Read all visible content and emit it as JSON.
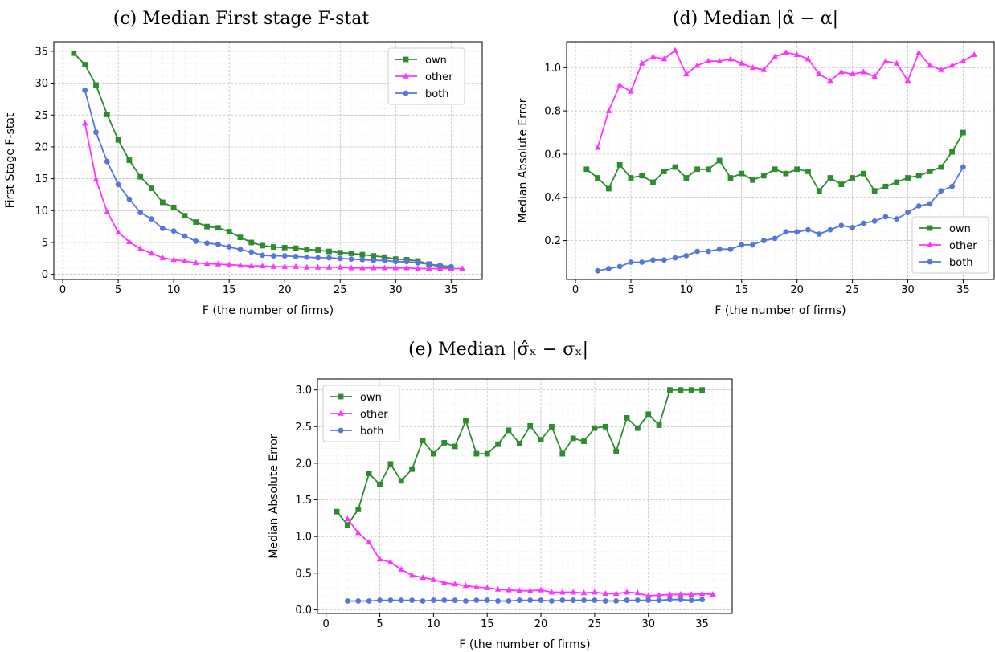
{
  "figure": {
    "panels": [
      {
        "title": "(c) Median First stage F-stat"
      },
      {
        "title": "(d) Median |α̂ − α|"
      },
      {
        "title": "(e) Median |σ̂ₓ − σₓ|"
      }
    ]
  },
  "chart_data": [
    {
      "type": "line",
      "title": "(c) Median First stage F-stat",
      "xlabel": "F (the number of firms)",
      "ylabel": "First Stage F-stat",
      "xlim": [
        -0.8,
        37.8
      ],
      "ylim": [
        -0.8,
        36.5
      ],
      "xticks": [
        0,
        5,
        10,
        15,
        20,
        25,
        30,
        35
      ],
      "yticks": [
        0,
        5,
        10,
        15,
        20,
        25,
        30,
        35
      ],
      "grid": true,
      "legend": "top-right",
      "series": [
        {
          "name": "own",
          "color": "#2e8b2e",
          "marker": "square",
          "x": [
            1,
            2,
            3,
            4,
            5,
            6,
            7,
            8,
            9,
            10,
            11,
            12,
            13,
            14,
            15,
            16,
            17,
            18,
            19,
            20,
            21,
            22,
            23,
            24,
            25,
            26,
            27,
            28,
            29,
            30,
            31,
            32,
            33,
            34,
            35
          ],
          "y": [
            34.7,
            32.9,
            29.7,
            25.1,
            21.1,
            17.9,
            15.3,
            13.5,
            11.3,
            10.5,
            9.2,
            8.2,
            7.5,
            7.3,
            6.7,
            5.8,
            5.0,
            4.5,
            4.3,
            4.2,
            4.1,
            3.9,
            3.8,
            3.6,
            3.4,
            3.3,
            3.1,
            2.9,
            2.7,
            2.4,
            2.3,
            2.1,
            1.6,
            1.2,
            1.0
          ]
        },
        {
          "name": "other",
          "color": "#ff33ff",
          "marker": "triangle",
          "x": [
            2,
            3,
            4,
            5,
            6,
            7,
            8,
            9,
            10,
            11,
            12,
            13,
            14,
            15,
            16,
            17,
            18,
            19,
            20,
            21,
            22,
            23,
            24,
            25,
            26,
            27,
            28,
            29,
            30,
            31,
            32,
            33,
            34,
            35,
            36
          ],
          "y": [
            23.7,
            14.9,
            9.8,
            6.6,
            5.1,
            4.0,
            3.3,
            2.6,
            2.3,
            2.1,
            1.8,
            1.7,
            1.6,
            1.5,
            1.4,
            1.3,
            1.3,
            1.2,
            1.2,
            1.2,
            1.1,
            1.1,
            1.1,
            1.1,
            1.0,
            1.0,
            1.0,
            1.0,
            1.0,
            1.0,
            0.9,
            0.9,
            0.9,
            0.9,
            0.9
          ]
        },
        {
          "name": "both",
          "color": "#5577dd",
          "marker": "circle",
          "x": [
            2,
            3,
            4,
            5,
            6,
            7,
            8,
            9,
            10,
            11,
            12,
            13,
            14,
            15,
            16,
            17,
            18,
            19,
            20,
            21,
            22,
            23,
            24,
            25,
            26,
            27,
            28,
            29,
            30,
            31,
            32,
            33,
            34,
            35
          ],
          "y": [
            28.9,
            22.3,
            17.7,
            14.1,
            11.8,
            9.7,
            8.7,
            7.2,
            6.8,
            6.0,
            5.2,
            4.9,
            4.7,
            4.3,
            3.9,
            3.5,
            3.0,
            2.9,
            2.9,
            2.8,
            2.7,
            2.6,
            2.6,
            2.5,
            2.4,
            2.3,
            2.2,
            2.2,
            2.0,
            2.0,
            1.8,
            1.6,
            1.4,
            1.2
          ]
        }
      ]
    },
    {
      "type": "line",
      "title": "(d) Median |α̂ − α|",
      "xlabel": "F (the number of firms)",
      "ylabel": "Median Absolute Error",
      "xlim": [
        -0.8,
        37.8
      ],
      "ylim": [
        0.02,
        1.12
      ],
      "xticks": [
        0,
        5,
        10,
        15,
        20,
        25,
        30,
        35
      ],
      "yticks": [
        0.2,
        0.4,
        0.6,
        0.8,
        1.0
      ],
      "grid": true,
      "legend": "bottom-right",
      "series": [
        {
          "name": "own",
          "color": "#2e8b2e",
          "marker": "square",
          "x": [
            1,
            2,
            3,
            4,
            5,
            6,
            7,
            8,
            9,
            10,
            11,
            12,
            13,
            14,
            15,
            16,
            17,
            18,
            19,
            20,
            21,
            22,
            23,
            24,
            25,
            26,
            27,
            28,
            29,
            30,
            31,
            32,
            33,
            34,
            35
          ],
          "y": [
            0.53,
            0.49,
            0.44,
            0.55,
            0.49,
            0.5,
            0.47,
            0.52,
            0.54,
            0.49,
            0.53,
            0.53,
            0.57,
            0.49,
            0.51,
            0.48,
            0.5,
            0.53,
            0.51,
            0.53,
            0.52,
            0.43,
            0.49,
            0.46,
            0.49,
            0.51,
            0.43,
            0.45,
            0.47,
            0.49,
            0.5,
            0.52,
            0.54,
            0.61,
            0.7
          ]
        },
        {
          "name": "other",
          "color": "#ff33ff",
          "marker": "triangle",
          "x": [
            2,
            3,
            4,
            5,
            6,
            7,
            8,
            9,
            10,
            11,
            12,
            13,
            14,
            15,
            16,
            17,
            18,
            19,
            20,
            21,
            22,
            23,
            24,
            25,
            26,
            27,
            28,
            29,
            30,
            31,
            32,
            33,
            34,
            35,
            36
          ],
          "y": [
            0.63,
            0.8,
            0.92,
            0.89,
            1.02,
            1.05,
            1.04,
            1.08,
            0.97,
            1.01,
            1.03,
            1.03,
            1.04,
            1.02,
            1.0,
            0.99,
            1.05,
            1.07,
            1.06,
            1.04,
            0.97,
            0.94,
            0.98,
            0.97,
            0.98,
            0.96,
            1.03,
            1.02,
            0.94,
            1.07,
            1.01,
            0.99,
            1.01,
            1.03,
            1.06
          ]
        },
        {
          "name": "both",
          "color": "#5577dd",
          "marker": "circle",
          "x": [
            2,
            3,
            4,
            5,
            6,
            7,
            8,
            9,
            10,
            11,
            12,
            13,
            14,
            15,
            16,
            17,
            18,
            19,
            20,
            21,
            22,
            23,
            24,
            25,
            26,
            27,
            28,
            29,
            30,
            31,
            32,
            33,
            34,
            35
          ],
          "y": [
            0.06,
            0.07,
            0.08,
            0.1,
            0.1,
            0.11,
            0.11,
            0.12,
            0.13,
            0.15,
            0.15,
            0.16,
            0.16,
            0.18,
            0.18,
            0.2,
            0.21,
            0.24,
            0.24,
            0.25,
            0.23,
            0.25,
            0.27,
            0.26,
            0.28,
            0.29,
            0.31,
            0.3,
            0.33,
            0.36,
            0.37,
            0.43,
            0.45,
            0.54
          ]
        }
      ]
    },
    {
      "type": "line",
      "title": "(e) Median |σ̂ₓ − σₓ|",
      "xlabel": "F (the number of firms)",
      "ylabel": "Median Absolute Error",
      "xlim": [
        -0.8,
        37.8
      ],
      "ylim": [
        -0.05,
        3.15
      ],
      "xticks": [
        0,
        5,
        10,
        15,
        20,
        25,
        30,
        35
      ],
      "yticks": [
        0.0,
        0.5,
        1.0,
        1.5,
        2.0,
        2.5,
        3.0
      ],
      "grid": true,
      "legend": "top-left",
      "series": [
        {
          "name": "own",
          "color": "#2e8b2e",
          "marker": "square",
          "x": [
            1,
            2,
            3,
            4,
            5,
            6,
            7,
            8,
            9,
            10,
            11,
            12,
            13,
            14,
            15,
            16,
            17,
            18,
            19,
            20,
            21,
            22,
            23,
            24,
            25,
            26,
            27,
            28,
            29,
            30,
            31,
            32,
            33,
            34,
            35
          ],
          "y": [
            1.34,
            1.16,
            1.37,
            1.86,
            1.71,
            1.99,
            1.76,
            1.92,
            2.31,
            2.13,
            2.28,
            2.23,
            2.58,
            2.13,
            2.13,
            2.26,
            2.45,
            2.27,
            2.51,
            2.32,
            2.5,
            2.13,
            2.34,
            2.3,
            2.48,
            2.5,
            2.16,
            2.62,
            2.48,
            2.67,
            2.52,
            3.0,
            3.0,
            3.0,
            3.0
          ]
        },
        {
          "name": "other",
          "color": "#ff33ff",
          "marker": "triangle",
          "x": [
            2,
            3,
            4,
            5,
            6,
            7,
            8,
            9,
            10,
            11,
            12,
            13,
            14,
            15,
            16,
            17,
            18,
            19,
            20,
            21,
            22,
            23,
            24,
            25,
            26,
            27,
            28,
            29,
            30,
            31,
            32,
            33,
            34,
            35,
            36
          ],
          "y": [
            1.24,
            1.05,
            0.92,
            0.69,
            0.65,
            0.55,
            0.47,
            0.44,
            0.41,
            0.37,
            0.35,
            0.33,
            0.31,
            0.3,
            0.28,
            0.27,
            0.26,
            0.26,
            0.27,
            0.24,
            0.24,
            0.24,
            0.23,
            0.24,
            0.22,
            0.22,
            0.24,
            0.23,
            0.19,
            0.2,
            0.21,
            0.21,
            0.21,
            0.22,
            0.21
          ]
        },
        {
          "name": "both",
          "color": "#5577dd",
          "marker": "circle",
          "x": [
            2,
            3,
            4,
            5,
            6,
            7,
            8,
            9,
            10,
            11,
            12,
            13,
            14,
            15,
            16,
            17,
            18,
            19,
            20,
            21,
            22,
            23,
            24,
            25,
            26,
            27,
            28,
            29,
            30,
            31,
            32,
            33,
            34,
            35
          ],
          "y": [
            0.12,
            0.12,
            0.12,
            0.13,
            0.13,
            0.13,
            0.13,
            0.12,
            0.13,
            0.13,
            0.13,
            0.12,
            0.13,
            0.13,
            0.12,
            0.12,
            0.13,
            0.13,
            0.13,
            0.12,
            0.13,
            0.13,
            0.13,
            0.13,
            0.12,
            0.12,
            0.13,
            0.13,
            0.13,
            0.13,
            0.14,
            0.14,
            0.13,
            0.14
          ]
        }
      ]
    }
  ]
}
